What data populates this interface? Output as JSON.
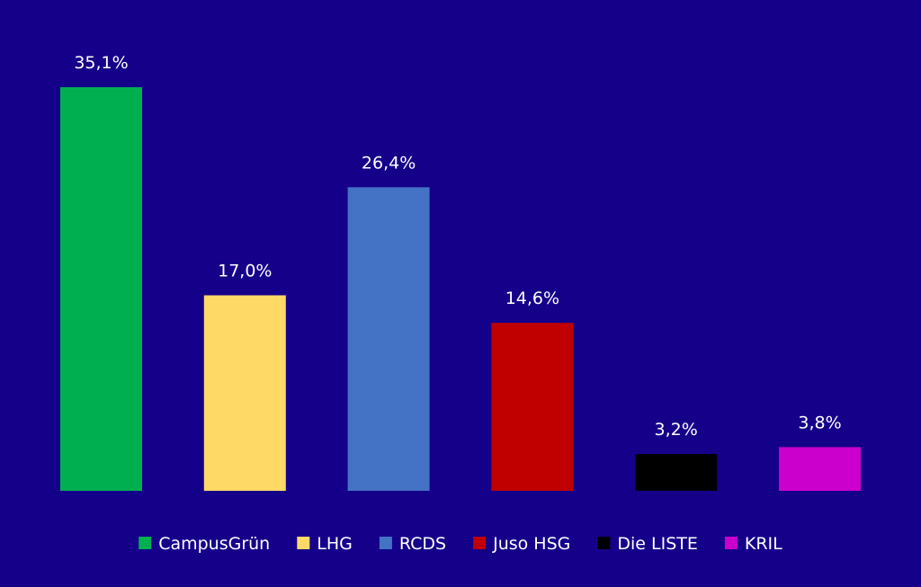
{
  "chart_data": {
    "type": "bar",
    "categories": [
      "CampusGrün",
      "LHG",
      "RCDS",
      "Juso HSG",
      "Die LISTE",
      "KRIL"
    ],
    "values": [
      35.1,
      17.0,
      26.4,
      14.6,
      3.2,
      3.8
    ],
    "data_labels": [
      "35,1%",
      "17,0%",
      "26,4%",
      "14,6%",
      "3,2%",
      "3,8%"
    ],
    "colors": [
      "#00b050",
      "#ffd966",
      "#4472c4",
      "#c00000",
      "#000000",
      "#cc00cc"
    ],
    "background": "#15008a",
    "ylim": [
      0,
      35.1
    ],
    "grid": false,
    "legend": {
      "placement": "bottom",
      "entries": [
        "CampusGrün",
        "LHG",
        "RCDS",
        "Juso HSG",
        "Die LISTE",
        "KRIL"
      ]
    }
  }
}
